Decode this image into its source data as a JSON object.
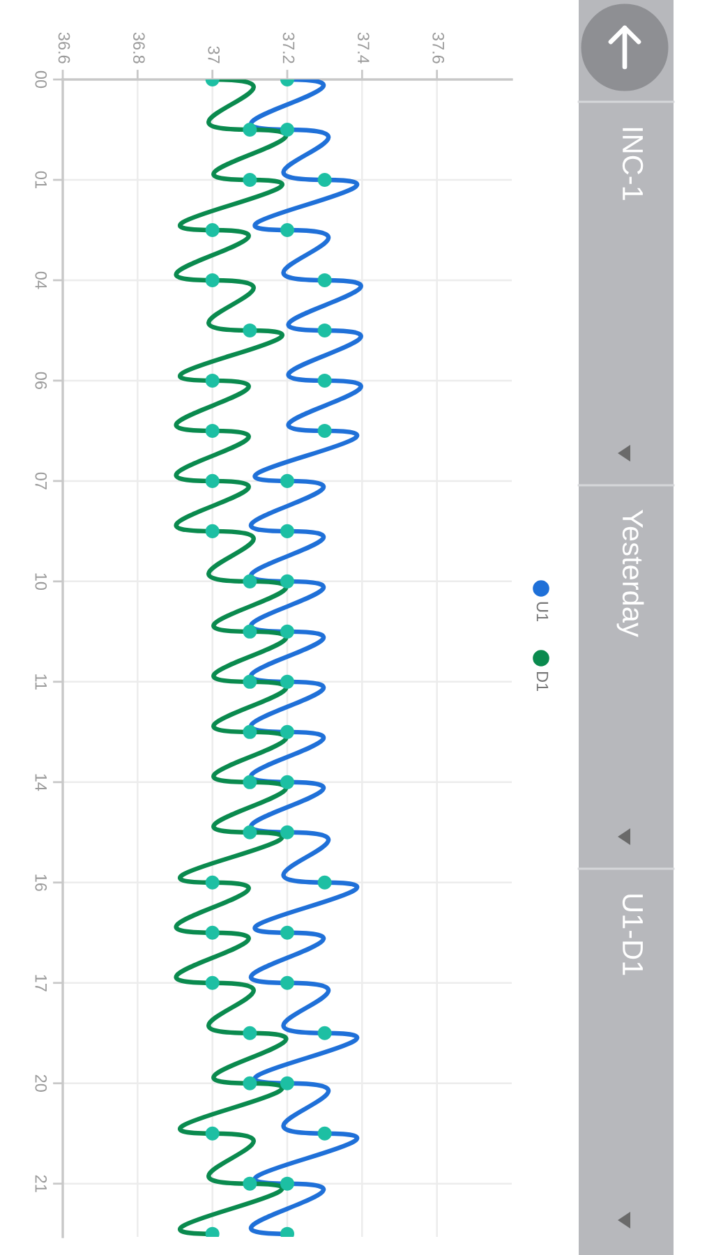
{
  "chart_data": {
    "type": "line",
    "orientation": "horizontal",
    "categories": [
      "00",
      null,
      "01",
      null,
      "04",
      null,
      "06",
      null,
      "07",
      null,
      "10",
      null,
      "11",
      null,
      "14",
      null,
      "16",
      null,
      "17",
      null,
      "20",
      null,
      "21",
      null
    ],
    "series": [
      {
        "name": "U1",
        "color": "#1f70d8",
        "colors": [
          "#1dbfa3",
          "#1dbfa3",
          "#1dbfa3",
          "#1dbfa3",
          "#1dbfa3",
          "#1dbfa3",
          "#1dbfa3",
          "#1dbfa3",
          "#1dbfa3",
          "#1dbfa3",
          "#1dbfa3",
          "#1dbfa3",
          "#1dbfa3",
          "#1dbfa3",
          "#1dbfa3",
          "#1dbfa3",
          "#1dbfa3",
          "#1dbfa3",
          "#1dbfa3",
          "#1dbfa3",
          "#1dbfa3",
          "#1dbfa3",
          "#1dbfa3",
          "#1dbfa3"
        ],
        "values": [
          37.2,
          37.2,
          37.3,
          37.2,
          37.3,
          37.3,
          37.3,
          37.3,
          37.2,
          37.2,
          37.2,
          37.2,
          37.2,
          37.2,
          37.2,
          37.2,
          37.3,
          37.2,
          37.2,
          37.3,
          37.2,
          37.3,
          37.2,
          37.2
        ]
      },
      {
        "name": "D1",
        "color": "#0a8a4e",
        "colors": [
          "#1dbfa3",
          "#1dbfa3",
          "#1dbfa3",
          "#1dbfa3",
          "#1dbfa3",
          "#1dbfa3",
          "#1dbfa3",
          "#1dbfa3",
          "#1dbfa3",
          "#1dbfa3",
          "#1dbfa3",
          "#1dbfa3",
          "#1dbfa3",
          "#1dbfa3",
          "#1dbfa3",
          "#1dbfa3",
          "#1dbfa3",
          "#1dbfa3",
          "#1dbfa3",
          "#1dbfa3",
          "#1dbfa3",
          "#1dbfa3",
          "#1dbfa3",
          "#1dbfa3"
        ],
        "values": [
          37.0,
          37.1,
          37.1,
          37.0,
          37.0,
          37.1,
          37.0,
          37.0,
          37.0,
          37.0,
          37.1,
          37.1,
          37.1,
          37.1,
          37.1,
          37.1,
          37.0,
          37.0,
          37.0,
          37.1,
          37.1,
          37.0,
          37.1,
          37.0
        ]
      }
    ],
    "xlim": [
      36.6,
      37.8
    ],
    "xticks": [
      36.6,
      36.8,
      37,
      37.2,
      37.4,
      37.6
    ],
    "grid": true,
    "legend": "right",
    "marker": "circle",
    "line_style": "solid",
    "annotations": [
      "INC-1",
      "Yesterday",
      "U1-D1"
    ]
  }
}
